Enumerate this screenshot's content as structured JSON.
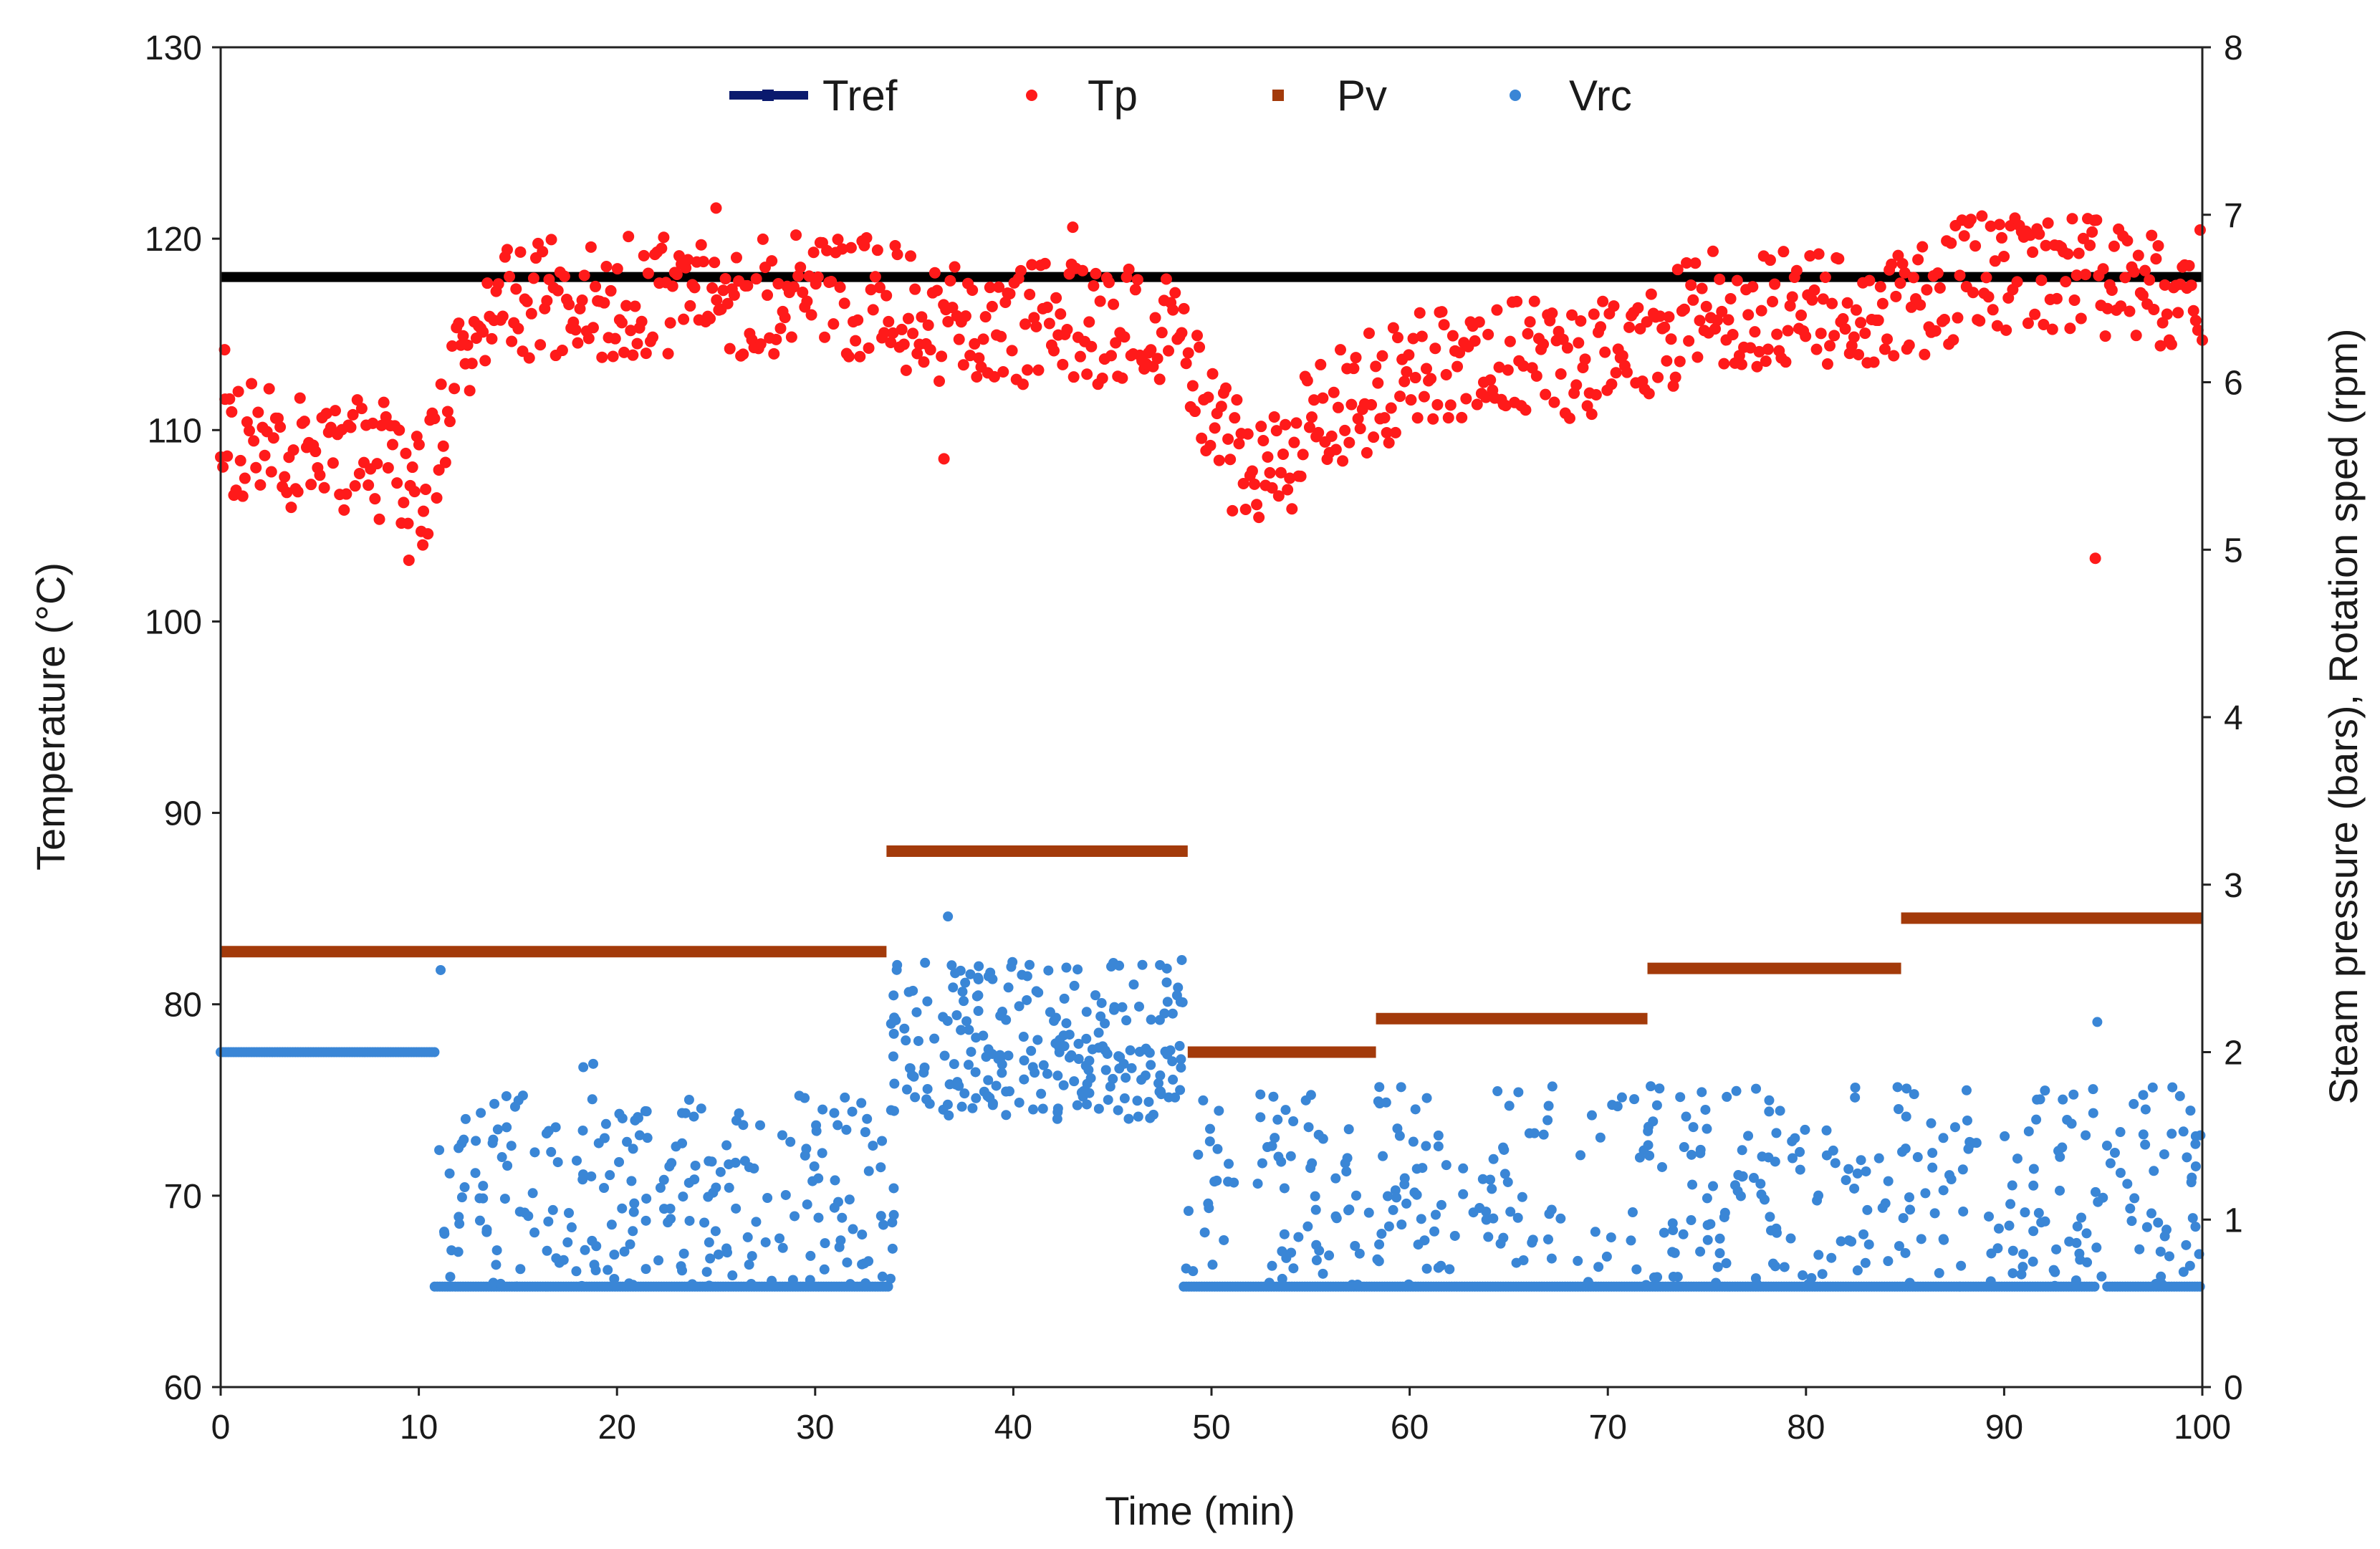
{
  "chart_data": {
    "type": "scatter",
    "title": "",
    "xlabel": "Time (min)",
    "ylabel_left": "Temperature (°C)",
    "ylabel_right": "Steam pressure (bars), Rotation sped (rpm)",
    "xlim": [
      0,
      100
    ],
    "ylim_left": [
      60,
      130
    ],
    "ylim_right": [
      0,
      8
    ],
    "x_ticks": [
      "0",
      "10",
      "20",
      "30",
      "40",
      "50",
      "60",
      "70",
      "80",
      "90",
      "100"
    ],
    "y_left_ticks": [
      "60",
      "70",
      "80",
      "90",
      "100",
      "110",
      "120",
      "130"
    ],
    "y_right_ticks": [
      "0",
      "1",
      "2",
      "3",
      "4",
      "5",
      "6",
      "7",
      "8"
    ],
    "grid": false,
    "legend_position": "top-center",
    "legend": [
      {
        "name": "Tref",
        "color": "#000000",
        "marker": "line"
      },
      {
        "name": "Tp",
        "color": "#ff1a1a",
        "marker": "dot"
      },
      {
        "name": "Pv",
        "color": "#a33a0a",
        "marker": "dash"
      },
      {
        "name": "Vrc",
        "color": "#3a86d6",
        "marker": "dot"
      }
    ],
    "series": [
      {
        "name": "Tref",
        "axis": "left",
        "kind": "line",
        "color": "#000000",
        "points": [
          [
            0,
            118
          ],
          [
            100,
            118
          ]
        ]
      },
      {
        "name": "Pv",
        "axis": "right",
        "kind": "step",
        "color": "#a33a0a",
        "segments": [
          [
            0,
            33.6,
            2.6
          ],
          [
            33.6,
            48.8,
            3.2
          ],
          [
            48.8,
            58.3,
            2.0
          ],
          [
            58.3,
            72.0,
            2.2
          ],
          [
            72.0,
            84.8,
            2.5
          ],
          [
            84.8,
            100,
            2.8
          ]
        ]
      },
      {
        "name": "Tp",
        "axis": "left",
        "kind": "scatter",
        "color": "#ff1a1a",
        "anchors": [
          [
            0,
            109.5
          ],
          [
            3,
            109
          ],
          [
            6,
            109
          ],
          [
            9,
            108
          ],
          [
            10.5,
            107.5
          ],
          [
            11,
            110
          ],
          [
            12,
            114
          ],
          [
            14,
            116.5
          ],
          [
            18,
            117
          ],
          [
            22,
            117
          ],
          [
            26,
            117
          ],
          [
            30,
            117
          ],
          [
            33,
            117
          ],
          [
            36,
            115.5
          ],
          [
            40,
            115.5
          ],
          [
            44,
            115.5
          ],
          [
            48,
            115
          ],
          [
            49,
            113
          ],
          [
            50,
            110
          ],
          [
            52,
            108
          ],
          [
            54,
            109
          ],
          [
            56,
            111
          ],
          [
            60,
            113
          ],
          [
            65,
            114
          ],
          [
            70,
            113.5
          ],
          [
            72,
            114.5
          ],
          [
            75,
            116.5
          ],
          [
            80,
            116.5
          ],
          [
            85,
            116.5
          ],
          [
            88,
            118
          ],
          [
            92,
            118.5
          ],
          [
            96,
            117.5
          ],
          [
            100,
            117.5
          ]
        ],
        "count": 900,
        "spread": 3.2,
        "extra_points": [
          [
            0.2,
            114.2
          ],
          [
            36.5,
            108.5
          ],
          [
            94.6,
            103.3
          ],
          [
            9.5,
            103.2
          ],
          [
            10.2,
            104
          ],
          [
            43,
            120.6
          ],
          [
            25,
            121.6
          ]
        ]
      },
      {
        "name": "Vrc",
        "axis": "right",
        "kind": "scatter",
        "color": "#3a86d6",
        "baseline": 0.6,
        "flat_segments": [
          [
            0,
            10.8,
            2.0
          ],
          [
            10.8,
            33.8,
            0.6
          ],
          [
            48.6,
            87.8,
            0.6
          ],
          [
            87.8,
            94.6,
            0.6
          ],
          [
            95.2,
            100,
            0.6
          ]
        ],
        "clusters": [
          {
            "x0": 11,
            "x1": 34,
            "ymin": 0.6,
            "ymax": 1.75,
            "count": 230
          },
          {
            "x0": 33.8,
            "x1": 48.6,
            "ymin": 1.6,
            "ymax": 2.55,
            "count": 230
          },
          {
            "x0": 48.6,
            "x1": 100,
            "ymin": 0.6,
            "ymax": 1.8,
            "count": 430
          }
        ],
        "extra_points": [
          [
            11.1,
            2.49
          ],
          [
            36.7,
            2.81
          ],
          [
            94.7,
            2.18
          ],
          [
            18.3,
            1.91
          ],
          [
            18.8,
            1.93
          ],
          [
            47.4,
            2.52
          ],
          [
            48.5,
            2.55
          ]
        ]
      }
    ]
  }
}
